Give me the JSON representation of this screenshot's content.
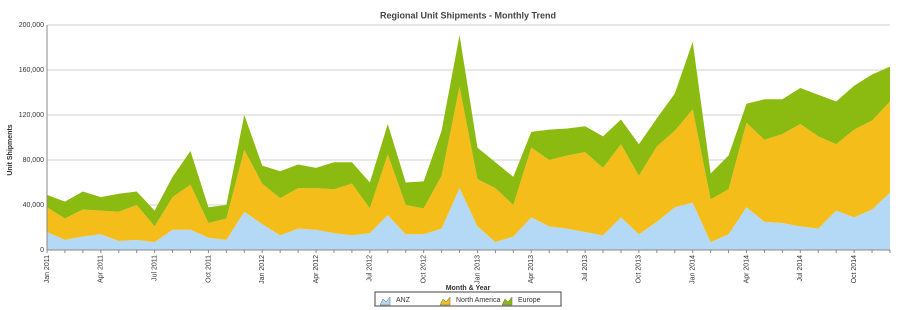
{
  "chart_data": {
    "type": "stacked-area",
    "title": "Regional Unit Shipments - Monthly Trend",
    "x_label": "Month & Year",
    "y_label": "Unit Shipments",
    "categories": [
      "Jan 2011",
      null,
      null,
      "Apr 2011",
      null,
      null,
      "Jul 2011",
      null,
      null,
      "Oct 2011",
      null,
      null,
      "Jan 2012",
      null,
      null,
      "Apr 2012",
      null,
      null,
      "Jul 2012",
      null,
      null,
      "Oct 2012",
      null,
      null,
      "Jan 2013",
      null,
      null,
      "Apr 2013",
      null,
      null,
      "Jul 2013",
      null,
      null,
      "Oct 2013",
      null,
      null,
      "Jan 2014",
      null,
      null,
      "Apr 2014",
      null,
      null,
      "Jul 2014",
      null,
      null,
      "Oct 2014",
      null,
      null
    ],
    "series": [
      {
        "name": "ANZ",
        "color": "#b3d9f6",
        "values": [
          16000,
          9000,
          12000,
          14000,
          8000,
          9000,
          7000,
          18000,
          18000,
          11000,
          9000,
          34000,
          23000,
          13000,
          19000,
          18000,
          15000,
          13000,
          15000,
          31000,
          14000,
          14000,
          19000,
          55000,
          21000,
          7000,
          12000,
          29000,
          21000,
          19000,
          16000,
          13000,
          29000,
          14000,
          25000,
          38000,
          42000,
          7000,
          14000,
          38000,
          25000,
          24000,
          21000,
          19000,
          35000,
          29000,
          36000,
          51000
        ]
      },
      {
        "name": "North America",
        "color": "#f5bd19",
        "values": [
          22000,
          19000,
          24000,
          21000,
          26000,
          31000,
          14000,
          29000,
          40000,
          13000,
          19000,
          55000,
          36000,
          33000,
          36000,
          37000,
          39000,
          46000,
          22000,
          54000,
          26000,
          23000,
          47000,
          90000,
          42000,
          48000,
          28000,
          62000,
          59000,
          65000,
          71000,
          60000,
          65000,
          52000,
          67000,
          68000,
          83000,
          38000,
          40000,
          75000,
          73000,
          79000,
          91000,
          82000,
          59000,
          78000,
          79000,
          81000
        ]
      },
      {
        "name": "Europe",
        "color": "#8bbb10",
        "values": [
          11000,
          15000,
          16000,
          12000,
          16000,
          12000,
          14000,
          18000,
          30000,
          14000,
          12000,
          31000,
          16000,
          24000,
          21000,
          18000,
          24000,
          19000,
          23000,
          27000,
          20000,
          24000,
          40000,
          46000,
          28000,
          23000,
          25000,
          14000,
          27000,
          24000,
          23000,
          28000,
          22000,
          28000,
          25000,
          33000,
          60000,
          23000,
          30000,
          17000,
          36000,
          31000,
          32000,
          37000,
          38000,
          39000,
          41000,
          31000
        ]
      }
    ],
    "ylim": [
      0,
      200000
    ],
    "yticks": [
      0,
      {
        "value": 40000,
        "label": "40,000"
      },
      {
        "value": 80000,
        "label": "80,000"
      },
      {
        "value": 120000,
        "label": "120,000"
      },
      {
        "value": 160000,
        "label": "160,000"
      },
      {
        "value": 200000,
        "label": "200,000"
      }
    ],
    "grid": true,
    "legend": "bottom"
  }
}
